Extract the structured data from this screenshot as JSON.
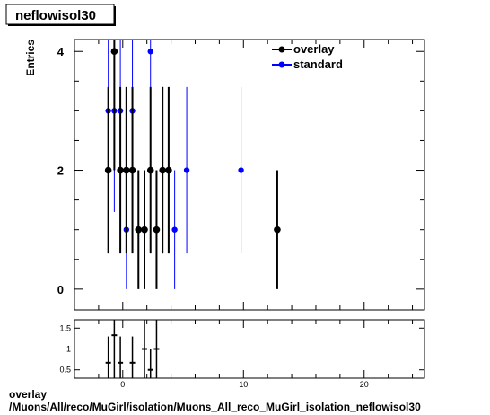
{
  "title": "neflowisol30",
  "footer": {
    "line1": "overlay",
    "line2": "/Muons/All/reco/MuGirl/isolation/Muons_All_reco_MuGirl_isolation_neflowisol30"
  },
  "colors": {
    "overlay": "#000000",
    "standard": "#0000ff",
    "ratio_line": "#cc0000"
  },
  "chart_data": [
    {
      "type": "scatter",
      "ylabel": "Entries",
      "xlim": [
        -4,
        25
      ],
      "ylim": [
        -0.35,
        4.2
      ],
      "y_ticks": [
        0,
        2,
        4
      ],
      "x_ticks": [
        0,
        10,
        20
      ],
      "legend": {
        "placement": "top-right",
        "entries": [
          "overlay",
          "standard"
        ]
      },
      "series": [
        {
          "name": "overlay",
          "points": [
            {
              "x": -1.2,
              "y": 2,
              "lo": 0.6,
              "hi": 3.4
            },
            {
              "x": -0.7,
              "y": 4,
              "lo": 2.0,
              "hi": 4.2
            },
            {
              "x": -0.2,
              "y": 2,
              "lo": 0.6,
              "hi": 3.4
            },
            {
              "x": 0.3,
              "y": 2,
              "lo": 0.6,
              "hi": 3.4
            },
            {
              "x": 0.8,
              "y": 2,
              "lo": 0.6,
              "hi": 3.4
            },
            {
              "x": 1.3,
              "y": 1,
              "lo": 0.0,
              "hi": 2.0
            },
            {
              "x": 1.8,
              "y": 1,
              "lo": 0.0,
              "hi": 2.0
            },
            {
              "x": 2.3,
              "y": 2,
              "lo": 0.6,
              "hi": 3.4
            },
            {
              "x": 2.8,
              "y": 1,
              "lo": 0.0,
              "hi": 2.0
            },
            {
              "x": 3.3,
              "y": 2,
              "lo": 0.6,
              "hi": 3.4
            },
            {
              "x": 3.8,
              "y": 2,
              "lo": 0.6,
              "hi": 3.4
            },
            {
              "x": 12.8,
              "y": 1,
              "lo": 0.0,
              "hi": 2.0
            }
          ]
        },
        {
          "name": "standard",
          "points": [
            {
              "x": -1.2,
              "y": 3,
              "lo": 1.3,
              "hi": 4.2
            },
            {
              "x": -0.7,
              "y": 3,
              "lo": 1.3,
              "hi": 4.2
            },
            {
              "x": -0.2,
              "y": 3,
              "lo": 1.3,
              "hi": 4.2
            },
            {
              "x": 0.3,
              "y": 1,
              "lo": 0.0,
              "hi": 2.0
            },
            {
              "x": 0.8,
              "y": 3,
              "lo": 1.3,
              "hi": 4.2
            },
            {
              "x": 2.3,
              "y": 4,
              "lo": 2.0,
              "hi": 4.2
            },
            {
              "x": 3.3,
              "y": 2,
              "lo": 0.6,
              "hi": 3.4
            },
            {
              "x": 4.3,
              "y": 1,
              "lo": 0.0,
              "hi": 2.0
            },
            {
              "x": 5.3,
              "y": 2,
              "lo": 0.6,
              "hi": 3.4
            },
            {
              "x": 9.8,
              "y": 2,
              "lo": 0.6,
              "hi": 3.4
            }
          ]
        }
      ]
    },
    {
      "type": "scatter",
      "ylim": [
        0.3,
        1.7
      ],
      "y_ticks": [
        0.5,
        1,
        1.5
      ],
      "x_ticks": [
        0,
        10,
        20
      ],
      "reference_line": 1,
      "points": [
        {
          "x": -1.2,
          "y": 0.67,
          "lo": 0.3,
          "hi": 1.3
        },
        {
          "x": -0.7,
          "y": 1.33,
          "lo": 0.3,
          "hi": 1.7
        },
        {
          "x": -0.2,
          "y": 0.67,
          "lo": 0.3,
          "hi": 1.3
        },
        {
          "x": 0.8,
          "y": 0.67,
          "lo": 0.3,
          "hi": 1.3
        },
        {
          "x": 1.8,
          "y": 1.0,
          "lo": 0.3,
          "hi": 1.7
        },
        {
          "x": 2.3,
          "y": 0.5,
          "lo": 0.3,
          "hi": 1.0
        },
        {
          "x": 2.8,
          "y": 1.0,
          "lo": 0.3,
          "hi": 1.7
        }
      ]
    }
  ]
}
